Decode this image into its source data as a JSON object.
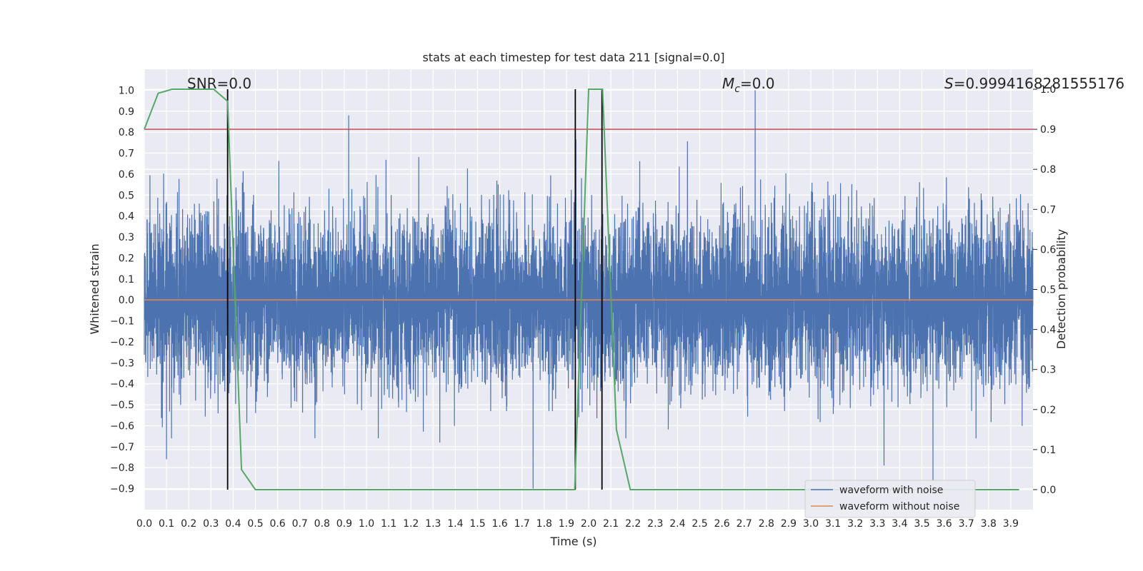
{
  "chart_data": {
    "type": "line",
    "title": "stats at each timestep for test data 211 [signal=0.0]",
    "xlabel": "Time (s)",
    "ylabel_left": "Whitened strain",
    "ylabel_right": "Detection probability",
    "xlim": [
      0.0,
      4.0
    ],
    "ylim_left": [
      -1.0,
      1.1
    ],
    "ylim_right": [
      -0.05,
      1.05
    ],
    "x_ticks": [
      "0.0",
      "0.1",
      "0.2",
      "0.3",
      "0.4",
      "0.5",
      "0.6",
      "0.7",
      "0.8",
      "0.9",
      "1.0",
      "1.1",
      "1.2",
      "1.3",
      "1.4",
      "1.5",
      "1.6",
      "1.7",
      "1.8",
      "1.9",
      "2.0",
      "2.1",
      "2.2",
      "2.3",
      "2.4",
      "2.5",
      "2.6",
      "2.7",
      "2.8",
      "2.9",
      "3.0",
      "3.1",
      "3.2",
      "3.3",
      "3.4",
      "3.5",
      "3.6",
      "3.7",
      "3.8",
      "3.9"
    ],
    "y_ticks_left": [
      "1.0",
      "0.9",
      "0.8",
      "0.7",
      "0.6",
      "0.5",
      "0.4",
      "0.3",
      "0.2",
      "0.1",
      "0.0",
      "−0.1",
      "−0.2",
      "−0.3",
      "−0.4",
      "−0.5",
      "−0.6",
      "−0.7",
      "−0.8",
      "−0.9"
    ],
    "y_ticks_right": [
      "1.0",
      "0.9",
      "0.8",
      "0.7",
      "0.6",
      "0.5",
      "0.4",
      "0.3",
      "0.2",
      "0.1",
      "0.0"
    ],
    "annotations": {
      "snr": "SNR=0.0",
      "mc": "M",
      "mc_sub": "c",
      "mc_val": "=0.0",
      "s_sym": "S",
      "s_val": "=0.9994168281555176"
    },
    "legend": {
      "position": "lower-right",
      "entries": [
        {
          "label": "waveform with noise",
          "color": "#4c72b0"
        },
        {
          "label": "waveform without noise",
          "color": "#dd8452"
        }
      ]
    },
    "noise_series": {
      "name": "waveform with noise",
      "color": "#4c72b0",
      "n_samples": 8192,
      "peaks": [
        {
          "x": 0.92,
          "y": 0.88
        },
        {
          "x": 2.75,
          "y": 1.0
        },
        {
          "x": 0.1,
          "y": -0.76
        },
        {
          "x": 1.33,
          "y": -0.68
        },
        {
          "x": 1.75,
          "y": -0.9
        },
        {
          "x": 3.33,
          "y": -0.79
        },
        {
          "x": 3.55,
          "y": -0.86
        }
      ]
    },
    "clean_series": {
      "name": "waveform without noise",
      "color": "#dd8452",
      "y": 0.0
    },
    "threshold_line": {
      "color": "#c44e52",
      "value": 0.9
    },
    "detection_probability": {
      "color": "#55a868",
      "x": [
        0.0,
        0.0625,
        0.125,
        0.1875,
        0.25,
        0.3125,
        0.375,
        0.4375,
        0.5,
        0.5625,
        0.625,
        0.6875,
        0.75,
        0.8125,
        0.875,
        0.9375,
        1.0,
        1.0625,
        1.125,
        1.1875,
        1.25,
        1.3125,
        1.375,
        1.4375,
        1.5,
        1.5625,
        1.625,
        1.6875,
        1.75,
        1.8125,
        1.875,
        1.9375,
        2.0,
        2.0625,
        2.125,
        2.1875,
        2.25,
        2.3125,
        2.375,
        2.4375,
        2.5,
        2.5625,
        2.625,
        2.6875,
        2.75,
        2.8125,
        2.875,
        2.9375,
        3.0,
        3.0625,
        3.125,
        3.1875,
        3.25,
        3.3125,
        3.375,
        3.4375,
        3.5,
        3.5625,
        3.625,
        3.6875,
        3.75,
        3.8125,
        3.875,
        3.9375
      ],
      "y": [
        0.9,
        0.99,
        1.0,
        1.0,
        1.0,
        1.0,
        0.97,
        0.05,
        0.0,
        0.0,
        0.0,
        0.0,
        0.0,
        0.0,
        0.0,
        0.0,
        0.0,
        0.0,
        0.0,
        0.0,
        0.0,
        0.0,
        0.0,
        0.0,
        0.0,
        0.0,
        0.0,
        0.0,
        0.0,
        0.0,
        0.0,
        0.0,
        1.0,
        1.0,
        0.15,
        0.0,
        0.0,
        0.0,
        0.0,
        0.0,
        0.0,
        0.0,
        0.0,
        0.0,
        0.0,
        0.0,
        0.0,
        0.0,
        0.0,
        0.0,
        0.0,
        0.0,
        0.0,
        0.0,
        0.0,
        0.0,
        0.0,
        0.0,
        0.0,
        0.0,
        0.0,
        0.0,
        0.0,
        0.0
      ]
    },
    "vertical_markers_x": [
      0.375,
      1.94,
      2.06
    ],
    "grid": true
  }
}
